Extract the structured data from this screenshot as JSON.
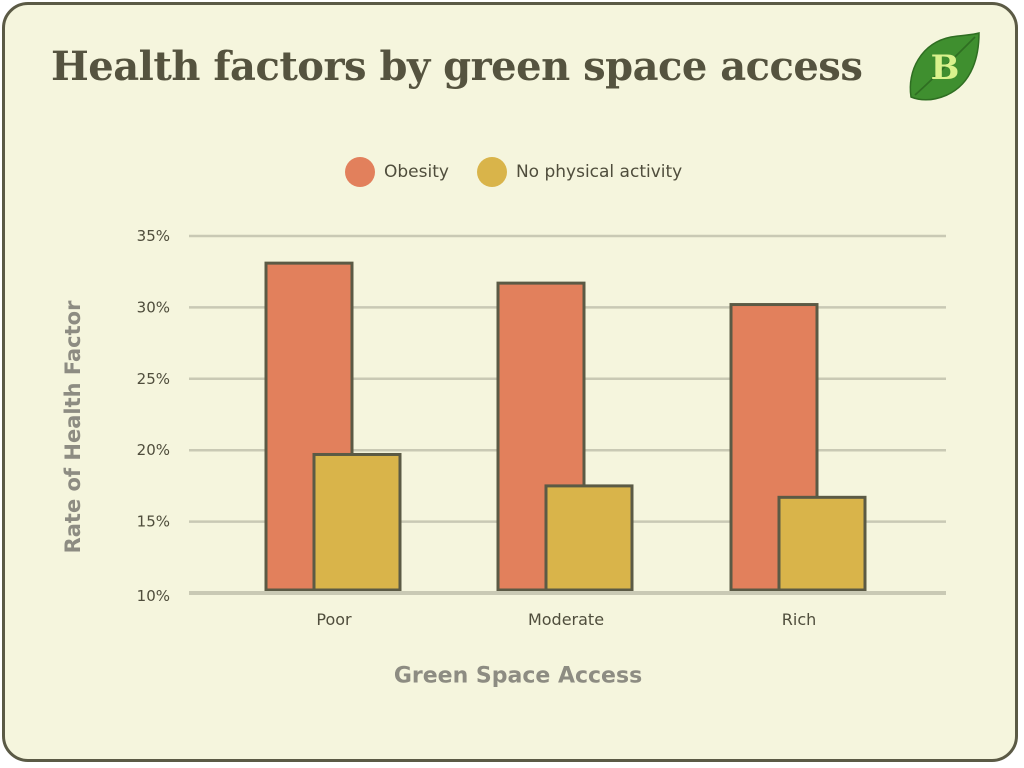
{
  "title": "Health factors by green space access",
  "logo": {
    "letter": "B",
    "icon": "leaf-icon"
  },
  "colors": {
    "background": "#f5f5dd",
    "obesity": "#e2805c",
    "no_physical_activity": "#d9b44a",
    "bar_outline": "#5b5a45",
    "grid": "#c9c9b4",
    "text": "#4f4d3c",
    "axis_title": "#8d8c82",
    "logo_leaf": "#3f8f2f"
  },
  "chart_data": {
    "type": "bar",
    "title": "Health factors by green space access",
    "xlabel": "Green Space Access",
    "ylabel": "Rate of Health Factor",
    "categories": [
      "Poor",
      "Moderate",
      "Rich"
    ],
    "series": [
      {
        "name": "Obesity",
        "values": [
          33.1,
          31.7,
          30.2
        ]
      },
      {
        "name": "No physical activity",
        "values": [
          19.7,
          17.5,
          16.7
        ]
      }
    ],
    "ylim": [
      10,
      35
    ],
    "yticks": [
      "10%",
      "15%",
      "20%",
      "25%",
      "30%",
      "35%"
    ],
    "ytick_values": [
      10,
      15,
      20,
      25,
      30,
      35
    ],
    "grid": true,
    "legend_position": "top-center"
  }
}
